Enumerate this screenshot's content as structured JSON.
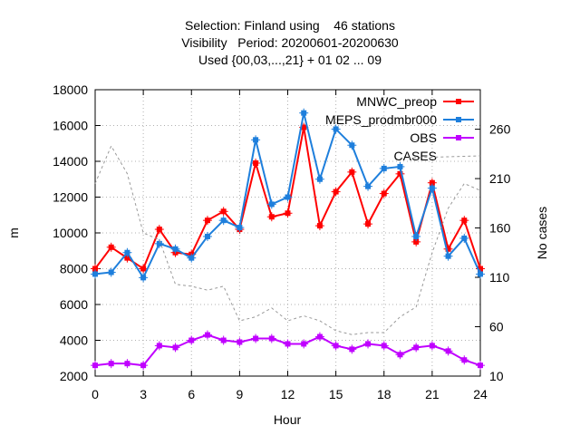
{
  "chart_data": {
    "type": "line",
    "title": [
      "Selection: Finland using    46 stations",
      "Visibility   Period: 20200601-20200630",
      "Used {00,03,...,21} + 01 02 ... 09"
    ],
    "xlabel": "Hour",
    "ylabel": "m",
    "y2label": "No cases",
    "xlim": [
      0,
      24
    ],
    "ylim": [
      2000,
      18000
    ],
    "y2lim": [
      10,
      300
    ],
    "xticks": [
      0,
      3,
      6,
      9,
      12,
      15,
      18,
      21,
      24
    ],
    "yticks": [
      2000,
      4000,
      6000,
      8000,
      10000,
      12000,
      14000,
      16000,
      18000
    ],
    "y2ticks": [
      10,
      60,
      110,
      160,
      210,
      260
    ],
    "legend_position": "top-right",
    "x": [
      0,
      1,
      2,
      3,
      4,
      5,
      6,
      7,
      8,
      9,
      10,
      11,
      12,
      13,
      14,
      15,
      16,
      17,
      18,
      19,
      20,
      21,
      22,
      23,
      24
    ],
    "series": [
      {
        "name": "MNWC_preop",
        "color": "#ff0000",
        "axis": "y",
        "values": [
          8000,
          9200,
          8600,
          8000,
          10200,
          8900,
          8800,
          10700,
          11200,
          10200,
          13900,
          10900,
          11100,
          15900,
          10400,
          12300,
          13400,
          10500,
          12200,
          13300,
          9500,
          12800,
          9100,
          10700,
          8000
        ]
      },
      {
        "name": "MEPS_prodmbr000",
        "color": "#1e7fdc",
        "axis": "y",
        "values": [
          7700,
          7800,
          8900,
          7500,
          9400,
          9100,
          8600,
          9800,
          10700,
          10300,
          15200,
          11600,
          12000,
          16700,
          13000,
          15800,
          14900,
          12600,
          13600,
          13700,
          9800,
          12500,
          8700,
          9700,
          7700
        ]
      },
      {
        "name": "OBS",
        "color": "#c000ff",
        "axis": "y",
        "values": [
          2600,
          2700,
          2700,
          2600,
          3700,
          3600,
          4000,
          4300,
          4000,
          3900,
          4100,
          4100,
          3800,
          3800,
          4200,
          3700,
          3500,
          3800,
          3700,
          3200,
          3600,
          3700,
          3400,
          2900,
          2600
        ]
      },
      {
        "name": "CASES",
        "color": "#999999",
        "axis": "y2",
        "dashed": true,
        "x": [
          0,
          1,
          2,
          3,
          4,
          5,
          6,
          7,
          8,
          9,
          10,
          11,
          12,
          13,
          14,
          15,
          16,
          17,
          18,
          19,
          20,
          21,
          22,
          23,
          24
        ],
        "values": [
          205,
          243,
          215,
          155,
          148,
          103,
          101,
          97,
          101,
          66,
          70,
          79,
          66,
          71,
          66,
          56,
          52,
          54,
          54,
          70,
          80,
          135,
          180,
          205,
          198
        ]
      }
    ],
    "legend_cases_line": {
      "x": [
        19.5,
        24
      ],
      "values": [
        231,
        233
      ]
    }
  }
}
